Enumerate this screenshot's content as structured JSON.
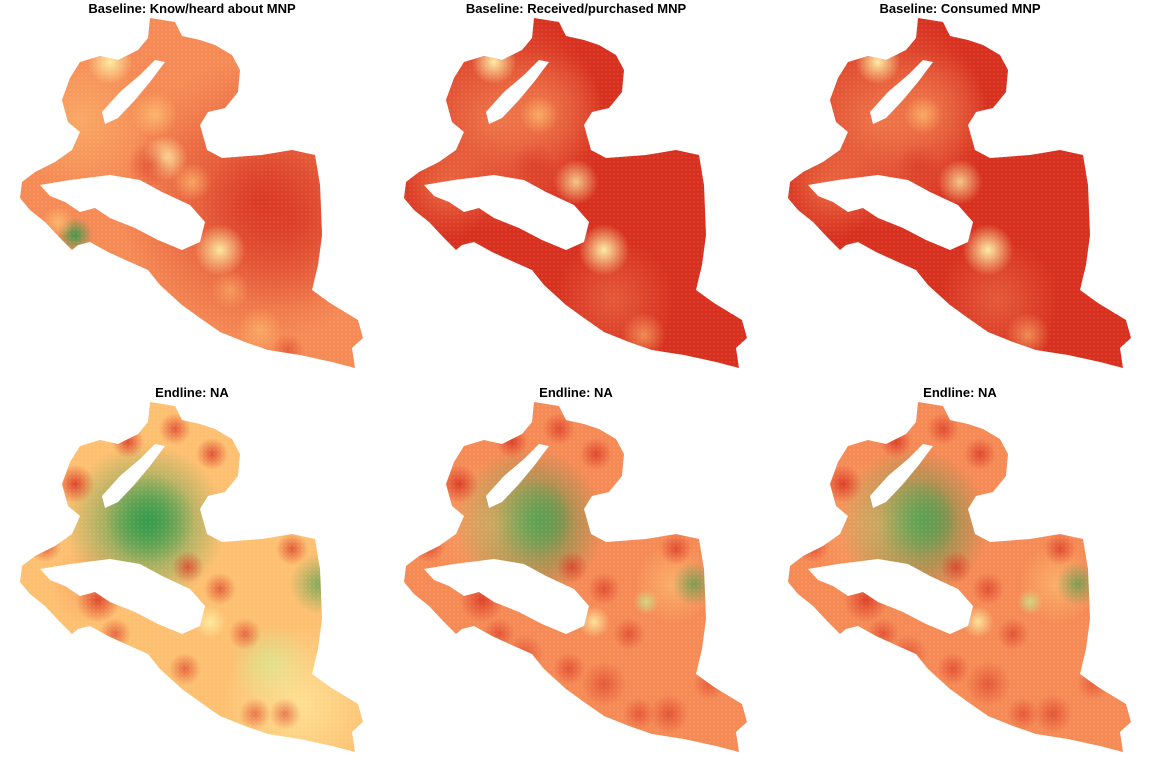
{
  "panels": [
    {
      "id": "p1",
      "title": "Baseline: Know/heard about MNP",
      "scheme": "baseline_light"
    },
    {
      "id": "p2",
      "title": "Baseline: Received/purchased MNP",
      "scheme": "baseline_red"
    },
    {
      "id": "p3",
      "title": "Baseline: Consumed MNP",
      "scheme": "baseline_red"
    },
    {
      "id": "p4",
      "title": "Endline: NA",
      "scheme": "endline_a"
    },
    {
      "id": "p5",
      "title": "Endline: NA",
      "scheme": "endline_b"
    },
    {
      "id": "p6",
      "title": "Endline: NA",
      "scheme": "endline_b"
    }
  ],
  "colors": {
    "dark_red": "#d7301f",
    "orange": "#f58a55",
    "light_orange": "#fdbf70",
    "yellow": "#fff5a8",
    "light_green": "#c8e68a",
    "green": "#2e9a4a"
  }
}
